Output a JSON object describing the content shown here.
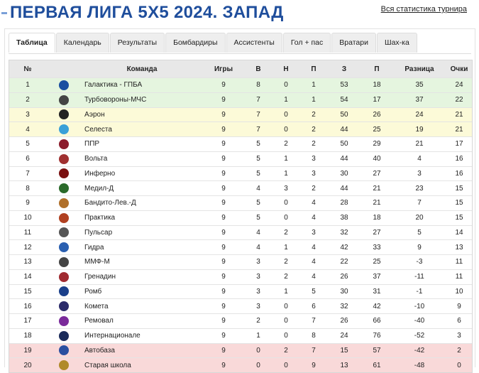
{
  "header": {
    "title": "ПЕРВАЯ ЛИГА 5Х5 2024. ЗАПАД",
    "link": "Вся статистика турнира"
  },
  "tabs": [
    "Таблица",
    "Календарь",
    "Результаты",
    "Бомбардиры",
    "Ассистенты",
    "Гол + пас",
    "Вратари",
    "Шах-ка"
  ],
  "table": {
    "columns": [
      "№",
      "Команда",
      "Игры",
      "В",
      "Н",
      "П",
      "З",
      "П",
      "Разница",
      "Очки"
    ],
    "rows": [
      [
        1,
        "Галактика - ГПБА",
        9,
        8,
        0,
        1,
        53,
        18,
        35,
        24
      ],
      [
        2,
        "Турбовороны-МЧС",
        9,
        7,
        1,
        1,
        54,
        17,
        37,
        22
      ],
      [
        3,
        "Аэрон",
        9,
        7,
        0,
        2,
        50,
        26,
        24,
        21
      ],
      [
        4,
        "Селеста",
        9,
        7,
        0,
        2,
        44,
        25,
        19,
        21
      ],
      [
        5,
        "ППР",
        9,
        5,
        2,
        2,
        50,
        29,
        21,
        17
      ],
      [
        6,
        "Вольта",
        9,
        5,
        1,
        3,
        44,
        40,
        4,
        16
      ],
      [
        7,
        "Инферно",
        9,
        5,
        1,
        3,
        30,
        27,
        3,
        16
      ],
      [
        8,
        "Медил-Д",
        9,
        4,
        3,
        2,
        44,
        21,
        23,
        15
      ],
      [
        9,
        "Бандито-Лев.-Д",
        9,
        5,
        0,
        4,
        28,
        21,
        7,
        15
      ],
      [
        10,
        "Практика",
        9,
        5,
        0,
        4,
        38,
        18,
        20,
        15
      ],
      [
        11,
        "Пульсар",
        9,
        4,
        2,
        3,
        32,
        27,
        5,
        14
      ],
      [
        12,
        "Гидра",
        9,
        4,
        1,
        4,
        42,
        33,
        9,
        13
      ],
      [
        13,
        "ММФ-М",
        9,
        3,
        2,
        4,
        22,
        25,
        -3,
        11
      ],
      [
        14,
        "Гренадин",
        9,
        3,
        2,
        4,
        26,
        37,
        -11,
        11
      ],
      [
        15,
        "Ромб",
        9,
        3,
        1,
        5,
        30,
        31,
        -1,
        10
      ],
      [
        16,
        "Комета",
        9,
        3,
        0,
        6,
        32,
        42,
        -10,
        9
      ],
      [
        17,
        "Ремовал",
        9,
        2,
        0,
        7,
        26,
        66,
        -40,
        6
      ],
      [
        18,
        "Интернационале",
        9,
        1,
        0,
        8,
        24,
        76,
        -52,
        3
      ],
      [
        19,
        "Автобаза",
        9,
        0,
        2,
        7,
        15,
        57,
        -42,
        2
      ],
      [
        20,
        "Старая школа",
        9,
        0,
        0,
        9,
        13,
        61,
        -48,
        0
      ]
    ]
  }
}
